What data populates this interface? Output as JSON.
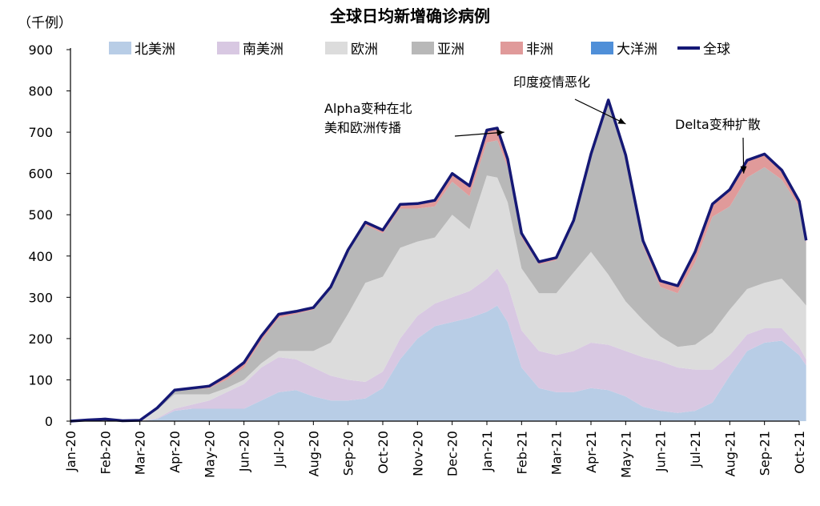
{
  "chart_data": {
    "type": "area",
    "title": "全球日均新增确诊病例",
    "unit_label": "（千例）",
    "ylim": [
      0,
      900
    ],
    "yticks": [
      0,
      100,
      200,
      300,
      400,
      500,
      600,
      700,
      800,
      900
    ],
    "x_tick_labels": [
      "Jan-20",
      "Feb-20",
      "Mar-20",
      "Apr-20",
      "May-20",
      "Jun-20",
      "Jul-20",
      "Aug-20",
      "Sep-20",
      "Oct-20",
      "Nov-20",
      "Dec-20",
      "Jan-21",
      "Feb-21",
      "Mar-21",
      "Apr-21",
      "May-21",
      "Jun-21",
      "Jul-21",
      "Aug-21",
      "Sep-21",
      "Oct-21"
    ],
    "x_months": [
      0,
      0.5,
      1,
      1.5,
      2,
      2.5,
      3,
      3.5,
      4,
      4.5,
      5,
      5.5,
      6,
      6.5,
      7,
      7.5,
      8,
      8.5,
      9,
      9.5,
      10,
      10.5,
      11,
      11.5,
      12,
      12.3,
      12.6,
      13,
      13.5,
      14,
      14.5,
      15,
      15.5,
      16,
      16.5,
      17,
      17.5,
      18,
      18.5,
      19,
      19.5,
      20,
      20.5,
      21,
      21.2
    ],
    "series": [
      {
        "name": "北美洲",
        "color": "#b8cde6",
        "values": [
          0,
          0,
          0,
          0,
          0,
          5,
          25,
          30,
          30,
          30,
          30,
          50,
          70,
          75,
          60,
          50,
          50,
          55,
          80,
          150,
          200,
          230,
          240,
          250,
          265,
          280,
          240,
          130,
          80,
          70,
          70,
          80,
          75,
          60,
          35,
          25,
          20,
          25,
          45,
          110,
          170,
          190,
          195,
          160,
          135
        ]
      },
      {
        "name": "南美洲",
        "color": "#d8c8e2",
        "values": [
          0,
          0,
          0,
          0,
          0,
          2,
          5,
          10,
          20,
          40,
          60,
          80,
          85,
          75,
          70,
          60,
          50,
          40,
          40,
          50,
          55,
          55,
          60,
          65,
          80,
          90,
          90,
          90,
          90,
          90,
          100,
          110,
          110,
          110,
          120,
          120,
          110,
          100,
          80,
          50,
          40,
          35,
          30,
          20,
          15
        ]
      },
      {
        "name": "欧洲",
        "color": "#dcdcdc",
        "values": [
          0,
          0,
          0,
          0,
          0,
          20,
          35,
          25,
          15,
          10,
          10,
          10,
          15,
          20,
          40,
          80,
          160,
          240,
          230,
          220,
          180,
          160,
          200,
          150,
          250,
          220,
          200,
          150,
          140,
          150,
          190,
          220,
          170,
          120,
          90,
          60,
          50,
          60,
          90,
          110,
          110,
          110,
          120,
          120,
          130
        ]
      },
      {
        "name": "亚洲",
        "color": "#b8b8b8",
        "values": [
          0,
          3,
          5,
          1,
          2,
          5,
          8,
          12,
          15,
          20,
          30,
          55,
          80,
          90,
          100,
          130,
          150,
          140,
          105,
          95,
          80,
          75,
          80,
          80,
          80,
          90,
          85,
          75,
          70,
          80,
          120,
          230,
          415,
          345,
          180,
          120,
          130,
          200,
          280,
          250,
          270,
          280,
          240,
          220,
          150
        ]
      },
      {
        "name": "非洲",
        "color": "#e09a9a",
        "values": [
          0,
          0,
          0,
          0,
          0,
          0,
          2,
          3,
          5,
          10,
          12,
          10,
          8,
          5,
          5,
          5,
          5,
          7,
          8,
          10,
          12,
          15,
          20,
          25,
          30,
          30,
          20,
          10,
          6,
          6,
          6,
          7,
          8,
          10,
          12,
          15,
          18,
          25,
          30,
          40,
          40,
          30,
          20,
          10,
          5
        ]
      },
      {
        "name": "大洋洲",
        "color": "#4f8fd8",
        "values": [
          0,
          0,
          0,
          0,
          0,
          0,
          0,
          0,
          0,
          0,
          0,
          1,
          1,
          1,
          0,
          0,
          0,
          0,
          0,
          0,
          0,
          0,
          0,
          0,
          0,
          0,
          0,
          0,
          0,
          0,
          0,
          0,
          0,
          0,
          0,
          0,
          0,
          0,
          1,
          1,
          2,
          2,
          3,
          3,
          3
        ]
      }
    ],
    "total": {
      "name": "全球",
      "color": "#151875"
    },
    "annotations": [
      {
        "text_lines": [
          "Alpha变种在北",
          "美和欧洲传播"
        ],
        "target": [
          12.5,
          700
        ]
      },
      {
        "text_lines": [
          "印度疫情恶化"
        ],
        "target": [
          16.0,
          720
        ]
      },
      {
        "text_lines": [
          "Delta变种扩散"
        ],
        "target": [
          19.4,
          600
        ]
      }
    ],
    "grid": false,
    "legend_position": "top"
  }
}
